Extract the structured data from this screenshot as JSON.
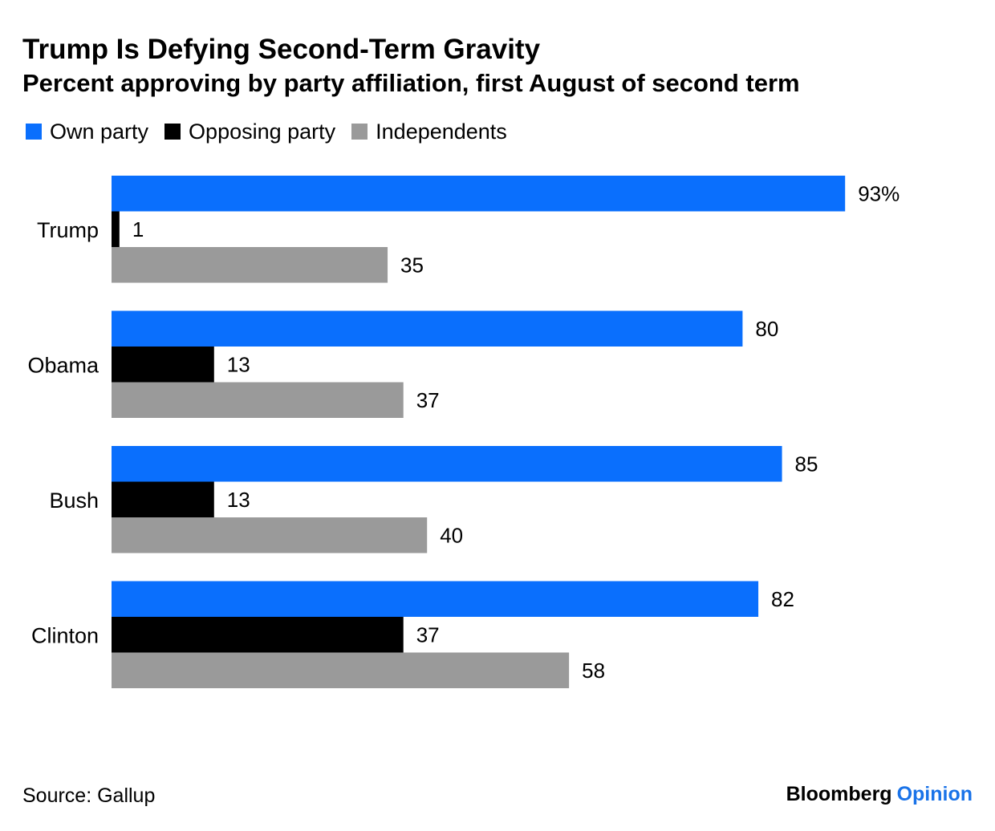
{
  "header": {
    "title": "Trump Is Defying Second-Term Gravity",
    "subtitle": "Percent approving by party affiliation, first August of second term"
  },
  "legend": [
    {
      "label": "Own party",
      "color": "#0a6ffd"
    },
    {
      "label": "Opposing party",
      "color": "#000000"
    },
    {
      "label": "Independents",
      "color": "#9a9a9a"
    }
  ],
  "chart_data": {
    "type": "bar",
    "orientation": "horizontal",
    "title": "Trump Is Defying Second-Term Gravity",
    "subtitle": "Percent approving by party affiliation, first August of second term",
    "categories": [
      "Trump",
      "Obama",
      "Bush",
      "Clinton"
    ],
    "series": [
      {
        "name": "Own party",
        "color": "#0a6ffd",
        "values": [
          93,
          80,
          85,
          82
        ]
      },
      {
        "name": "Opposing party",
        "color": "#000000",
        "values": [
          1,
          13,
          13,
          37
        ]
      },
      {
        "name": "Independents",
        "color": "#9a9a9a",
        "values": [
          35,
          37,
          40,
          58
        ]
      }
    ],
    "data_labels": [
      [
        "93%",
        "1",
        "35"
      ],
      [
        "80",
        "13",
        "37"
      ],
      [
        "85",
        "13",
        "40"
      ],
      [
        "82",
        "37",
        "58"
      ]
    ],
    "xlim": [
      0,
      100
    ],
    "grid": false,
    "legend_position": "top-left"
  },
  "footer": {
    "source": "Source: Gallup",
    "brand_main": "Bloomberg",
    "brand_accent": "Opinion"
  }
}
